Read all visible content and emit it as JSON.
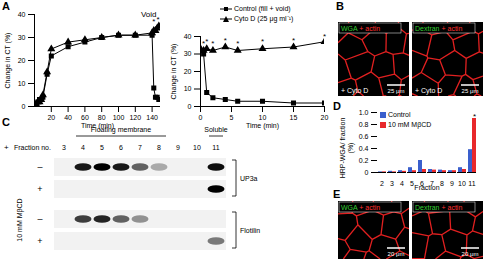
{
  "chart_data": [
    {
      "type": "line",
      "x_label": "Time (min)",
      "y_label": "Change in CT (%)",
      "x": [
        0,
        2,
        4,
        6,
        8,
        10,
        15,
        20,
        40,
        60,
        80,
        100,
        120,
        140,
        142,
        144,
        146,
        148
      ],
      "series": [
        {
          "name": "Control (fill + void)",
          "color": "#000000",
          "marker": "square",
          "values": [
            0,
            1,
            2,
            3,
            3,
            4,
            14,
            22,
            26,
            28,
            30,
            31,
            31,
            31,
            8,
            4,
            4,
            3
          ]
        },
        {
          "name": "Cyto D (25 μg ml⁻¹)",
          "color": "#000000",
          "marker": "triangle",
          "values": [
            0,
            1,
            2,
            2,
            3,
            5,
            15,
            25,
            28,
            29,
            30,
            31,
            31,
            32,
            33,
            33,
            34,
            35
          ]
        }
      ],
      "xlim": [
        0,
        150
      ],
      "xticks": [
        20,
        40,
        60,
        80,
        100,
        120,
        140
      ],
      "ylim": [
        0,
        40
      ],
      "yticks": [
        0,
        10,
        20,
        30,
        40
      ],
      "annotations": [
        {
          "text": "Void",
          "x": 136,
          "y": 40
        },
        {
          "text": "*",
          "x": 142,
          "y": 37
        },
        {
          "text": "*",
          "x": 147,
          "y": 38
        }
      ]
    },
    {
      "type": "line",
      "x_label": "Time (min)",
      "y_label": "Change in CT (%)",
      "x": [
        0,
        0.5,
        1,
        2,
        4,
        6,
        10,
        15,
        20
      ],
      "series": [
        {
          "name": "Control (fill + void)",
          "color": "#000000",
          "marker": "square",
          "values": [
            32,
            30,
            8,
            5,
            4,
            3,
            3,
            2,
            2
          ]
        },
        {
          "name": "Cyto D (25 μg ml⁻¹)",
          "color": "#000000",
          "marker": "triangle",
          "values": [
            33,
            32,
            33,
            32,
            34,
            32,
            33,
            34,
            37
          ]
        }
      ],
      "xlim": [
        0,
        20
      ],
      "xticks": [
        0,
        5,
        10,
        15,
        20
      ],
      "ylim": [
        0,
        40
      ],
      "yticks": [
        0,
        10,
        20,
        30,
        40
      ],
      "legend": "top",
      "annotations": [
        {
          "text": "*",
          "x": 0.5,
          "y": 36
        },
        {
          "text": "*",
          "x": 1,
          "y": 37
        },
        {
          "text": "*",
          "x": 2,
          "y": 36
        },
        {
          "text": "*",
          "x": 4,
          "y": 38
        },
        {
          "text": "*",
          "x": 6,
          "y": 36
        },
        {
          "text": "*",
          "x": 10,
          "y": 37
        },
        {
          "text": "*",
          "x": 15,
          "y": 38
        },
        {
          "text": "*",
          "x": 20,
          "y": 40
        }
      ]
    },
    {
      "type": "bar",
      "x_label": "Fraction",
      "y_label": "HRP-WGA/ fraction (%)",
      "categories": [
        "2",
        "3",
        "4",
        "5",
        "6",
        "7",
        "8",
        "9",
        "10",
        "11"
      ],
      "series": [
        {
          "name": "Control",
          "color": "#3a5fcd",
          "values": [
            0.01,
            0.02,
            0.03,
            0.08,
            0.2,
            0.05,
            0.04,
            0.03,
            0.08,
            0.38
          ]
        },
        {
          "name": "10 mM MβCD",
          "color": "#e8282b",
          "values": [
            0.01,
            0.01,
            0.02,
            0.03,
            0.05,
            0.04,
            0.03,
            0.03,
            0.05,
            0.9
          ]
        }
      ],
      "ylim": [
        0,
        1
      ],
      "yticks": [
        0,
        0.2,
        0.4,
        0.6,
        0.8,
        {
          "value": 1,
          "label": "1.0"
        }
      ],
      "legend": "top-left",
      "annotations": [
        {
          "text": "*",
          "category": "11",
          "series": "10 mM MβCD",
          "y": 0.93
        }
      ]
    }
  ],
  "figure": {
    "panel_labels": [
      "A",
      "B",
      "C",
      "D",
      "E"
    ],
    "micrographs": {
      "B": [
        {
          "label": [
            {
              "text": "WGA",
              "color": "#33cc33"
            },
            {
              "text": " + actin",
              "color": "#ff3030"
            }
          ],
          "condition": "+ Cyto D",
          "scale_bar": "25 μm"
        },
        {
          "label": [
            {
              "text": "Dextran",
              "color": "#33cc33"
            },
            {
              "text": " + actin",
              "color": "#ff3030"
            }
          ],
          "condition": "+ Cyto D",
          "scale_bar": "25 μm"
        }
      ],
      "E": [
        {
          "label": [
            {
              "text": "WGA",
              "color": "#33cc33"
            },
            {
              "text": " + actin",
              "color": "#ff3030"
            }
          ],
          "scale_bar": "20 μm"
        },
        {
          "label": [
            {
              "text": "Dextran",
              "color": "#33cc33"
            },
            {
              "text": " + actin",
              "color": "#ff3030"
            }
          ],
          "scale_bar": "20 μm"
        }
      ]
    },
    "blot": {
      "corner_mark": "+",
      "fraction_label": "Fraction no.",
      "fractions": [
        3,
        4,
        5,
        6,
        7,
        8,
        9,
        10,
        11
      ],
      "groups": [
        {
          "text": "Floating membrane",
          "from": 4,
          "to": 8
        },
        {
          "text": "Soluble",
          "from": 11,
          "to": 11
        }
      ],
      "treatment": "10 mM MβCD",
      "proteins": [
        {
          "name": "UP3a",
          "rows": [
            {
              "sign": "–",
              "bands": [
                0,
                0.9,
                1,
                0.9,
                0.6,
                0.3,
                0,
                0,
                0.95
              ]
            },
            {
              "sign": "+",
              "bands": [
                0,
                0,
                0,
                0,
                0,
                0,
                0,
                0,
                1
              ]
            }
          ]
        },
        {
          "name": "Flotilin",
          "rows": [
            {
              "sign": "–",
              "bands": [
                0,
                0.75,
                0.85,
                0.6,
                0.4,
                0,
                0,
                0,
                0
              ]
            },
            {
              "sign": "+",
              "bands": [
                0,
                0,
                0,
                0,
                0,
                0,
                0,
                0,
                0.5
              ]
            }
          ]
        }
      ]
    }
  }
}
